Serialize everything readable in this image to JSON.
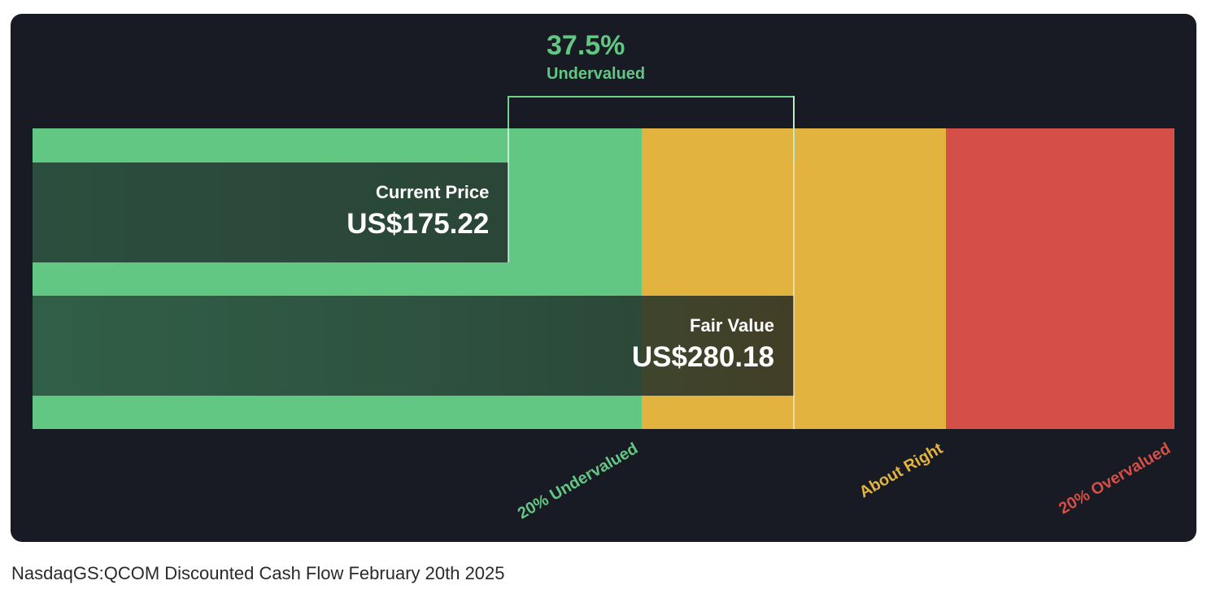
{
  "chart_data": {
    "type": "bar",
    "zones": [
      {
        "name": "20% Undervalued",
        "from": 0,
        "to": 224.144,
        "color": "#63c784"
      },
      {
        "name": "About Right",
        "from": 224.144,
        "to": 336.216,
        "color": "#e3b33f"
      },
      {
        "name": "20% Overvalued",
        "from": 336.216,
        "to": 420.27,
        "color": "#d44f47"
      }
    ],
    "bars": [
      {
        "label": "Current Price",
        "value": 175.22,
        "display": "US$175.22"
      },
      {
        "label": "Fair Value",
        "value": 280.18,
        "display": "US$280.18"
      }
    ],
    "axis_labels": [
      "20% Undervalued",
      "About Right",
      "20% Overvalued"
    ],
    "discount": {
      "value": "37.5%",
      "label": "Undervalued",
      "color": "#63c784"
    }
  },
  "caption": "NasdaqGS:QCOM Discounted Cash Flow February 20th 2025"
}
